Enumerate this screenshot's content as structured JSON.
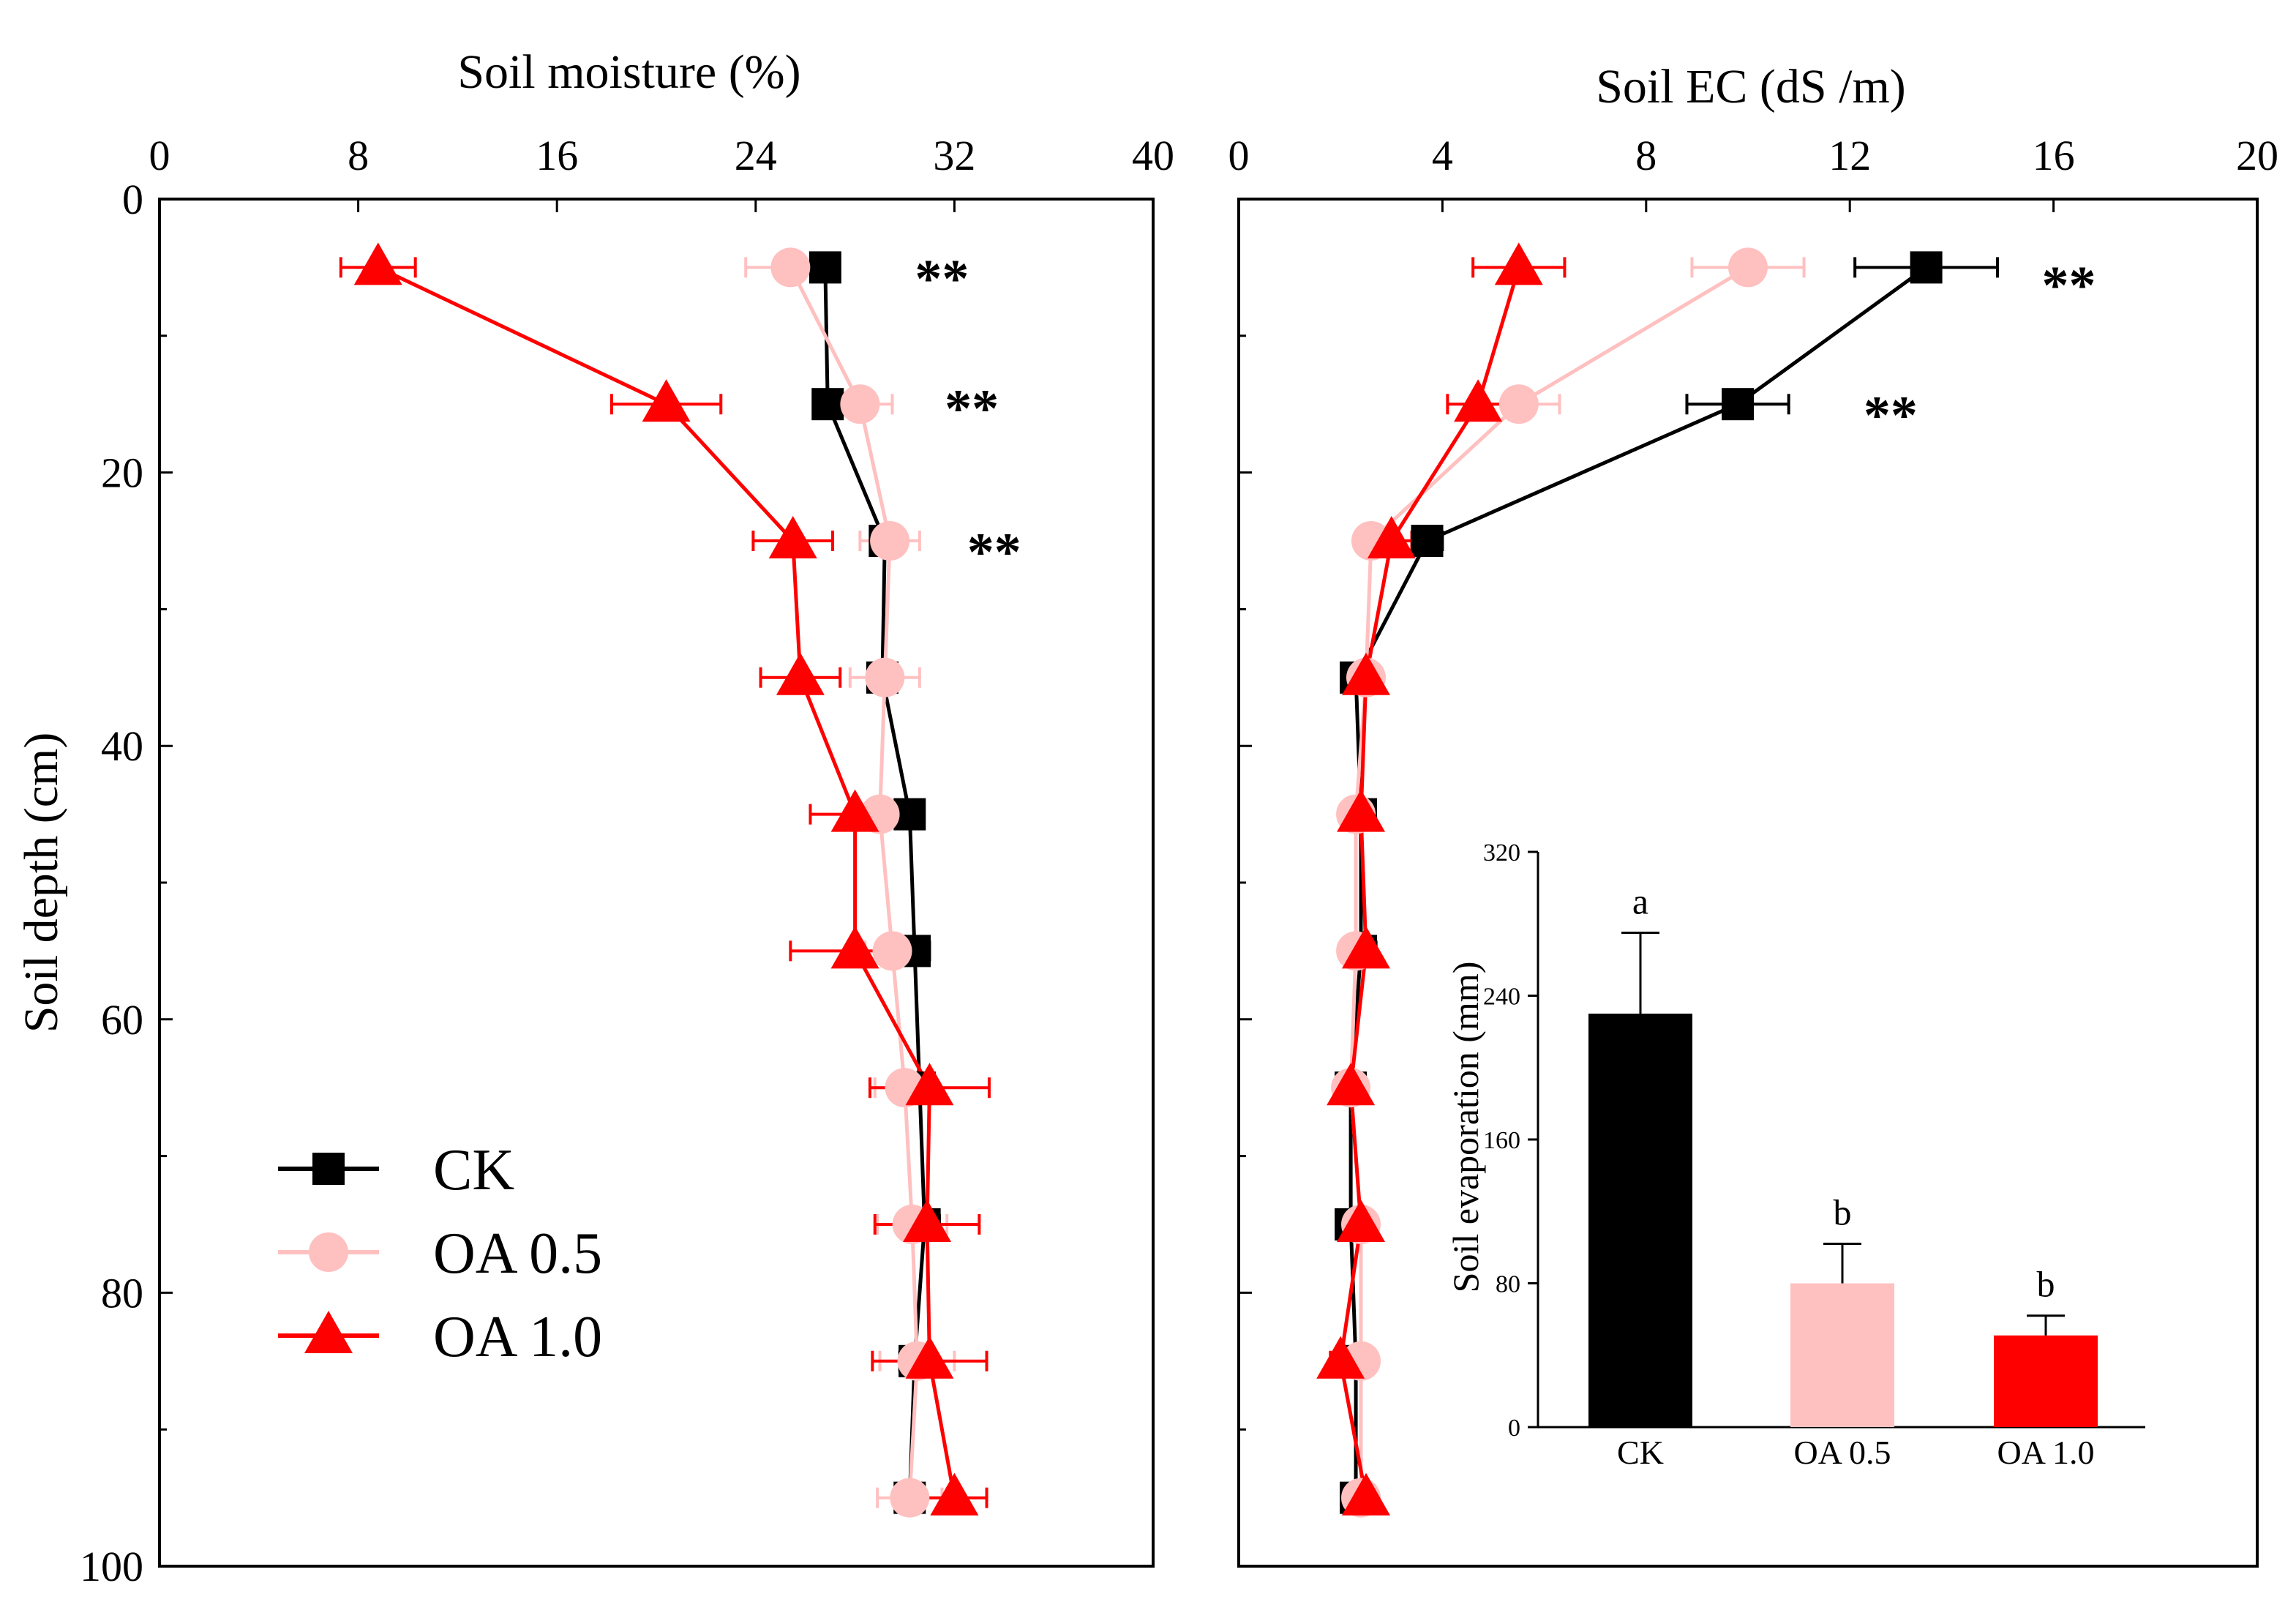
{
  "chart_data": [
    {
      "type": "line",
      "id": "moisture",
      "title": "",
      "xlabel": "Soil moisture (%)",
      "ylabel": "Soil depth (cm)",
      "xlim": [
        0,
        40
      ],
      "ylim": [
        0,
        100
      ],
      "xticks": [
        0,
        8,
        16,
        24,
        32,
        40
      ],
      "yticks": [
        0,
        20,
        40,
        60,
        80,
        100
      ],
      "y": [
        5,
        15,
        25,
        35,
        45,
        55,
        65,
        75,
        85,
        95
      ],
      "legend_position": "bottom-left",
      "series": [
        {
          "name": "CK",
          "color": "#000000",
          "marker": "square",
          "x": [
            26.8,
            26.9,
            29.2,
            29.1,
            30.2,
            30.4,
            30.6,
            30.8,
            30.4,
            30.2
          ],
          "xerr": [
            0.5,
            0.5,
            0.5,
            0.5,
            0.5,
            0.6,
            0.6,
            0.6,
            0.6,
            0.5
          ]
        },
        {
          "name": "OA 0.5",
          "color": "#ffc0c0",
          "marker": "circle",
          "x": [
            25.4,
            28.2,
            29.4,
            29.2,
            29.0,
            29.5,
            30.0,
            30.3,
            30.5,
            30.2
          ],
          "xerr": [
            1.8,
            1.3,
            1.2,
            1.4,
            1.0,
            1.1,
            1.2,
            1.4,
            1.5,
            1.3
          ]
        },
        {
          "name": "OA 1.0",
          "color": "#ff0000",
          "marker": "triangle",
          "x": [
            8.8,
            20.4,
            25.5,
            25.8,
            28.0,
            28.0,
            31.0,
            30.9,
            31.0,
            32.0
          ],
          "xerr": [
            1.5,
            2.2,
            1.6,
            1.6,
            1.8,
            2.6,
            2.4,
            2.1,
            2.3,
            1.3
          ]
        }
      ],
      "annotations": [
        {
          "text": "**",
          "x": 31.5,
          "y": 5
        },
        {
          "text": "**",
          "x": 32.7,
          "y": 14.5
        },
        {
          "text": "**",
          "x": 33.6,
          "y": 25
        }
      ]
    },
    {
      "type": "line",
      "id": "ec",
      "title": "",
      "xlabel": "Soil EC (dS /m)",
      "ylabel": "",
      "xlim": [
        0,
        20
      ],
      "ylim": [
        0,
        100
      ],
      "xticks": [
        0,
        4,
        8,
        12,
        16,
        20
      ],
      "y": [
        5,
        15,
        25,
        35,
        45,
        55,
        65,
        75,
        85,
        95
      ],
      "series": [
        {
          "name": "CK",
          "color": "#000000",
          "marker": "square",
          "x": [
            13.5,
            9.8,
            3.7,
            2.3,
            2.4,
            2.4,
            2.2,
            2.2,
            2.3,
            2.3
          ],
          "xerr": [
            1.4,
            1.0,
            0.3,
            0.2,
            0.2,
            0.2,
            0.2,
            0.2,
            0.2,
            0.2
          ]
        },
        {
          "name": "OA 0.5",
          "color": "#ffc0c0",
          "marker": "circle",
          "x": [
            10.0,
            5.5,
            2.6,
            2.5,
            2.3,
            2.3,
            2.2,
            2.4,
            2.4,
            2.4
          ],
          "xerr": [
            1.1,
            0.8,
            0.3,
            0.3,
            0.2,
            0.2,
            0.2,
            0.2,
            0.2,
            0.2
          ]
        },
        {
          "name": "OA 1.0",
          "color": "#ff0000",
          "marker": "triangle",
          "x": [
            5.5,
            4.7,
            3.0,
            2.5,
            2.4,
            2.5,
            2.2,
            2.4,
            2.0,
            2.5
          ],
          "xerr": [
            0.9,
            0.6,
            0.4,
            0.3,
            0.2,
            0.2,
            0.2,
            0.2,
            0.2,
            0.2
          ]
        }
      ],
      "annotations": [
        {
          "text": "**",
          "x": 16.3,
          "y": 5.5
        },
        {
          "text": "**",
          "x": 12.8,
          "y": 15
        }
      ]
    },
    {
      "type": "bar",
      "id": "evaporation",
      "title": "",
      "xlabel": "",
      "ylabel": "Soil evaporation (mm)",
      "ylim": [
        0,
        320
      ],
      "yticks": [
        0,
        80,
        160,
        240,
        320
      ],
      "categories": [
        "CK",
        "OA 0.5",
        "OA 1.0"
      ],
      "values": [
        230,
        80,
        51
      ],
      "errors": [
        45,
        22,
        11
      ],
      "colors": [
        "#000000",
        "#ffc0c0",
        "#ff0000"
      ],
      "letters": [
        "a",
        "b",
        "b"
      ]
    }
  ]
}
